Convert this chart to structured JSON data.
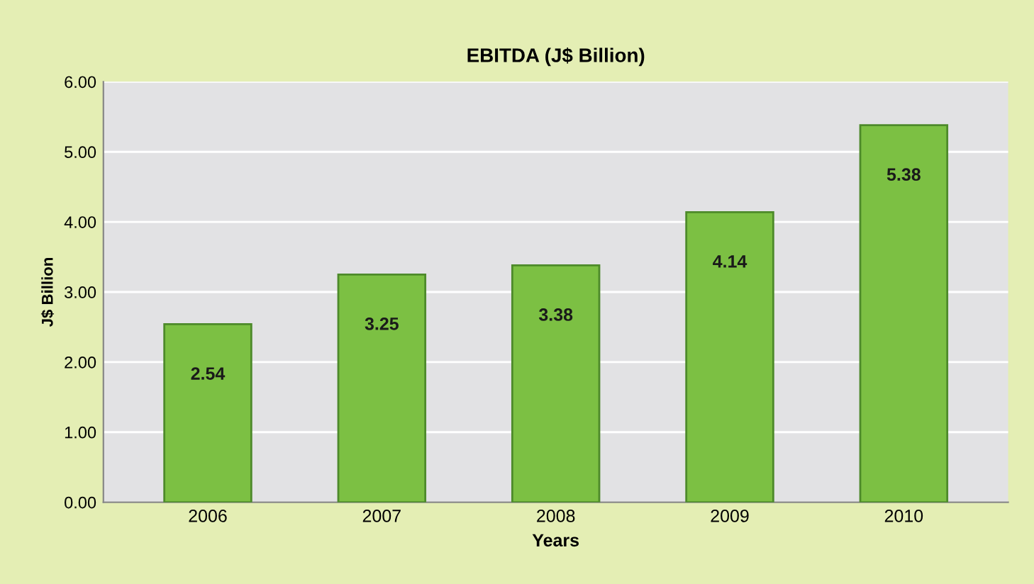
{
  "chart_data": {
    "type": "bar",
    "title": "EBITDA (J$ Billion)",
    "xlabel": "Years",
    "ylabel": "J$ Billion",
    "categories": [
      "2006",
      "2007",
      "2008",
      "2009",
      "2010"
    ],
    "values": [
      2.54,
      3.25,
      3.38,
      4.14,
      5.38
    ],
    "color": "#7cc043",
    "ylim": [
      0,
      6
    ],
    "yticks": [
      {
        "value": 0,
        "label": "0.00"
      },
      {
        "value": 1,
        "label": "1.00"
      },
      {
        "value": 2,
        "label": "2.00"
      },
      {
        "value": 3,
        "label": "3.00"
      },
      {
        "value": 4,
        "label": "4.00"
      },
      {
        "value": 5,
        "label": "5.00"
      },
      {
        "value": 6,
        "label": "6.00"
      }
    ],
    "grid": "y",
    "data_labels": true
  }
}
